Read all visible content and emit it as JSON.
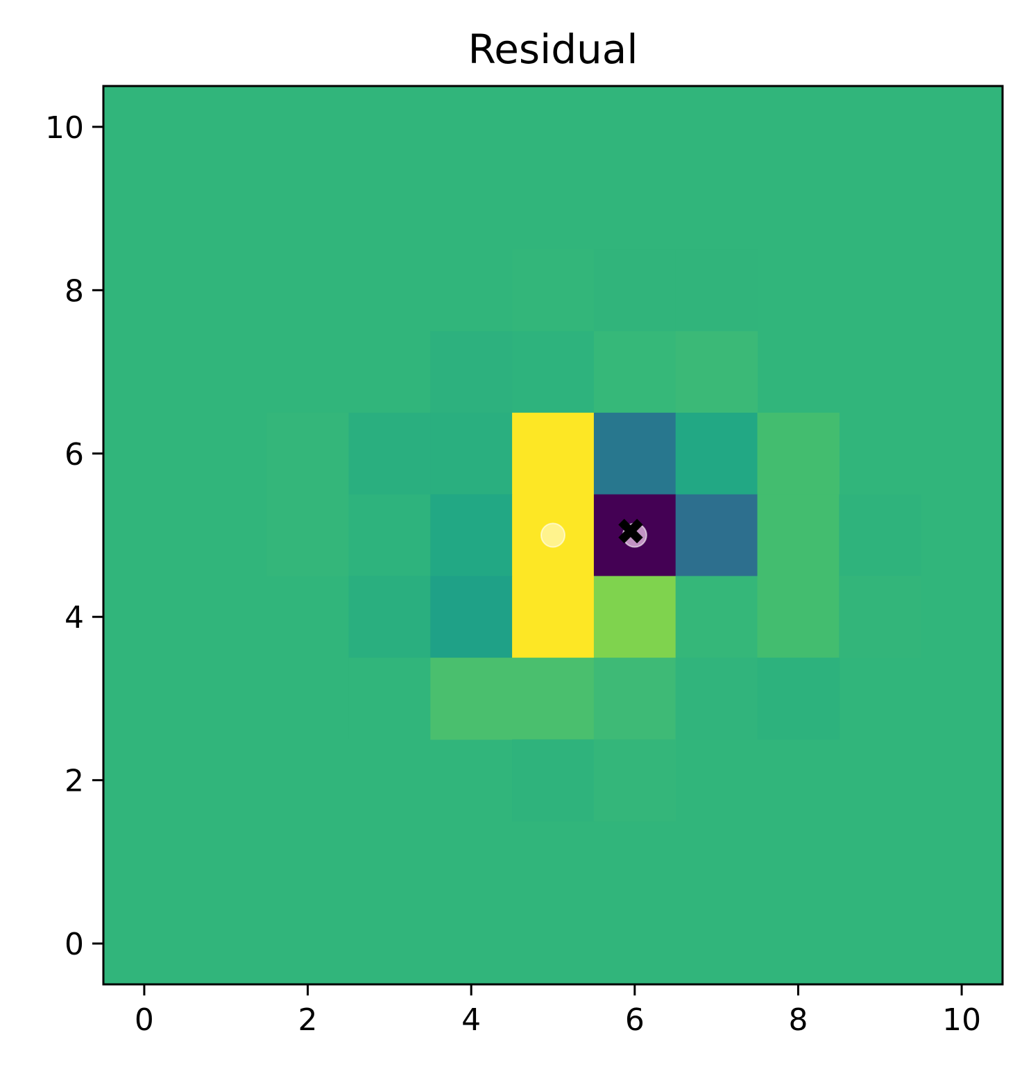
{
  "chart_data": {
    "type": "heatmap",
    "title": "Residual",
    "xlabel": "",
    "ylabel": "",
    "xlim": [
      -0.5,
      10.5
    ],
    "ylim": [
      -0.5,
      10.5
    ],
    "origin": "lower",
    "colormap": "viridis",
    "xticks": [
      0,
      2,
      4,
      6,
      8,
      10
    ],
    "yticks": [
      0,
      2,
      4,
      6,
      8,
      10
    ],
    "grid": false,
    "background_color": "#31b57b",
    "cells": [
      {
        "x": 5,
        "y": 8,
        "color": "#33b67a"
      },
      {
        "x": 6,
        "y": 8,
        "color": "#31b47b"
      },
      {
        "x": 7,
        "y": 8,
        "color": "#31b47b"
      },
      {
        "x": 4,
        "y": 7,
        "color": "#2db17e"
      },
      {
        "x": 5,
        "y": 7,
        "color": "#2eb37d"
      },
      {
        "x": 6,
        "y": 7,
        "color": "#36b879"
      },
      {
        "x": 7,
        "y": 7,
        "color": "#3bb977"
      },
      {
        "x": 2,
        "y": 6,
        "color": "#34b67a"
      },
      {
        "x": 3,
        "y": 6,
        "color": "#2aaf7f"
      },
      {
        "x": 4,
        "y": 6,
        "color": "#2aaf7f"
      },
      {
        "x": 5,
        "y": 6,
        "color": "#fde725"
      },
      {
        "x": 6,
        "y": 6,
        "color": "#28778e"
      },
      {
        "x": 7,
        "y": 6,
        "color": "#22a884"
      },
      {
        "x": 8,
        "y": 6,
        "color": "#43bd6f"
      },
      {
        "x": 2,
        "y": 5,
        "color": "#34b67a"
      },
      {
        "x": 3,
        "y": 5,
        "color": "#2eb37d"
      },
      {
        "x": 4,
        "y": 5,
        "color": "#22a884"
      },
      {
        "x": 5,
        "y": 5,
        "color": "#fde725"
      },
      {
        "x": 6,
        "y": 5,
        "color": "#440154"
      },
      {
        "x": 7,
        "y": 5,
        "color": "#2d6f8e"
      },
      {
        "x": 8,
        "y": 5,
        "color": "#43bd6f"
      },
      {
        "x": 9,
        "y": 5,
        "color": "#2fb37c"
      },
      {
        "x": 3,
        "y": 4,
        "color": "#2aaf7f"
      },
      {
        "x": 4,
        "y": 4,
        "color": "#1fa187"
      },
      {
        "x": 5,
        "y": 4,
        "color": "#fde725"
      },
      {
        "x": 6,
        "y": 4,
        "color": "#7fd34e"
      },
      {
        "x": 7,
        "y": 4,
        "color": "#35b779"
      },
      {
        "x": 8,
        "y": 4,
        "color": "#43bd6f"
      },
      {
        "x": 9,
        "y": 4,
        "color": "#33b57a"
      },
      {
        "x": 3,
        "y": 3,
        "color": "#31b57b"
      },
      {
        "x": 4,
        "y": 3,
        "color": "#4abf6e"
      },
      {
        "x": 5,
        "y": 3,
        "color": "#4abf6e"
      },
      {
        "x": 6,
        "y": 3,
        "color": "#3eba76"
      },
      {
        "x": 7,
        "y": 3,
        "color": "#31b47c"
      },
      {
        "x": 8,
        "y": 3,
        "color": "#2db27d"
      },
      {
        "x": 5,
        "y": 2,
        "color": "#2fb37c"
      },
      {
        "x": 6,
        "y": 2,
        "color": "#34b67a"
      }
    ],
    "markers": [
      {
        "x": 5,
        "y": 5,
        "shape": "circle",
        "color": "#fff6a8",
        "opacity": 0.8
      },
      {
        "x": 6,
        "y": 5,
        "shape": "circle",
        "color": "#e2b8e0",
        "opacity": 0.8
      },
      {
        "x": 5.95,
        "y": 5.05,
        "shape": "x",
        "color": "#000000",
        "opacity": 1
      }
    ]
  }
}
